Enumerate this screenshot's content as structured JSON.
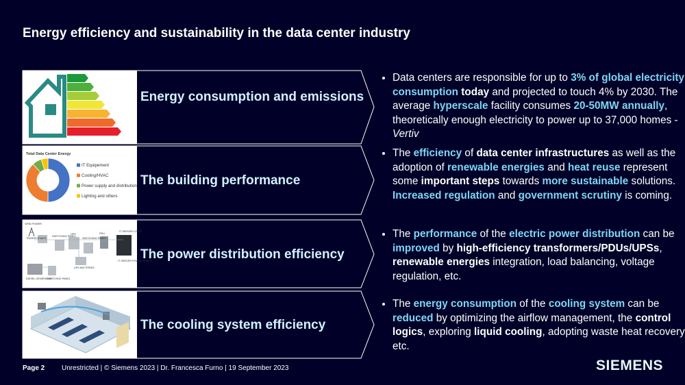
{
  "header": {
    "title": "Energy efficiency and sustainability in the data center industry"
  },
  "rows": [
    {
      "heading": "Energy consumption and emissions",
      "bullet": [
        {
          "text": "Data centers are responsible for up to ",
          "style": "plain"
        },
        {
          "text": "3% of global electricity consumption",
          "style": "highlight"
        },
        {
          "text": " today",
          "style": "bold"
        },
        {
          "text": " and projected to touch 4% by 2030. The average ",
          "style": "plain"
        },
        {
          "text": "hyperscale",
          "style": "highlight"
        },
        {
          "text": " facility consumes ",
          "style": "plain"
        },
        {
          "text": "20-50MW annually",
          "style": "highlight"
        },
        {
          "text": ", theoretically enough electricity to power up to 37,000 homes - ",
          "style": "plain"
        },
        {
          "text": "Vertiv",
          "style": "italic"
        }
      ]
    },
    {
      "heading": "The building performance",
      "bullet": [
        {
          "text": "The ",
          "style": "plain"
        },
        {
          "text": "efficiency",
          "style": "highlight"
        },
        {
          "text": " of ",
          "style": "plain"
        },
        {
          "text": "data center infrastructures",
          "style": "bold"
        },
        {
          "text": " as well as the adoption of ",
          "style": "plain"
        },
        {
          "text": "renewable energies",
          "style": "highlight"
        },
        {
          "text": " and ",
          "style": "plain"
        },
        {
          "text": "heat reuse",
          "style": "highlight"
        },
        {
          "text": " represent some ",
          "style": "plain"
        },
        {
          "text": "important steps",
          "style": "bold"
        },
        {
          "text": " towards ",
          "style": "plain"
        },
        {
          "text": "more sustainable",
          "style": "highlight"
        },
        {
          "text": " solutions. ",
          "style": "plain"
        },
        {
          "text": "Increased regulation",
          "style": "highlight"
        },
        {
          "text": " and ",
          "style": "plain"
        },
        {
          "text": "government scrutiny",
          "style": "highlight"
        },
        {
          "text": " is coming.",
          "style": "plain"
        }
      ]
    },
    {
      "heading": "The power distribution efficiency",
      "bullet": [
        {
          "text": "The ",
          "style": "plain"
        },
        {
          "text": "performance",
          "style": "highlight"
        },
        {
          "text": " of the ",
          "style": "plain"
        },
        {
          "text": "electric power distribution",
          "style": "highlight"
        },
        {
          "text": " can be ",
          "style": "plain"
        },
        {
          "text": "improved",
          "style": "highlight"
        },
        {
          "text": " by ",
          "style": "plain"
        },
        {
          "text": "high-efficiency transformers/PDUs/UPSs",
          "style": "bold"
        },
        {
          "text": ", ",
          "style": "plain"
        },
        {
          "text": "renewable energies",
          "style": "bold"
        },
        {
          "text": " integration, load balancing, voltage regulation, etc.",
          "style": "plain"
        }
      ]
    },
    {
      "heading": "The cooling system efficiency",
      "bullet": [
        {
          "text": "The ",
          "style": "plain"
        },
        {
          "text": "energy consumption",
          "style": "highlight"
        },
        {
          "text": " of the ",
          "style": "plain"
        },
        {
          "text": "cooling system",
          "style": "highlight"
        },
        {
          "text": " can be ",
          "style": "plain"
        },
        {
          "text": "reduced",
          "style": "highlight"
        },
        {
          "text": " by optimizing the airflow management, the ",
          "style": "plain"
        },
        {
          "text": "control logics",
          "style": "bold"
        },
        {
          "text": ", exploring ",
          "style": "plain"
        },
        {
          "text": "liquid cooling",
          "style": "bold"
        },
        {
          "text": ", adopting waste heat recovery,  etc.",
          "style": "plain"
        }
      ]
    }
  ],
  "donut": {
    "title": "Total Data Center Energy",
    "series": [
      {
        "name": "IT Equipement",
        "color": "#4472c4",
        "value": 50
      },
      {
        "name": "Cooling/HVAC",
        "color": "#ed7d31",
        "value": 38
      },
      {
        "name": "Power supply and distribution",
        "color": "#70ad47",
        "value": 7
      },
      {
        "name": "Lighting and others",
        "color": "#ffc000",
        "value": 5
      }
    ]
  },
  "power_diagram": {
    "labels": [
      "GRID POWER",
      "TRANSFORMER",
      "SWITCHING PANEL",
      "UPS",
      "SWITCHING PANEL",
      "PDU",
      "IT SERVER LOADS",
      "IT SERVER POWER SUPPLY",
      "UPS BATTERIES",
      "DIESEL GENERATOR",
      "SWITCHING PANEL"
    ]
  },
  "footer": {
    "page": "Page 2",
    "info": "Unrestricted | © Siemens 2023 | Dr. Francesca Furno | 19 September 2023",
    "logo": "SIEMENS"
  }
}
